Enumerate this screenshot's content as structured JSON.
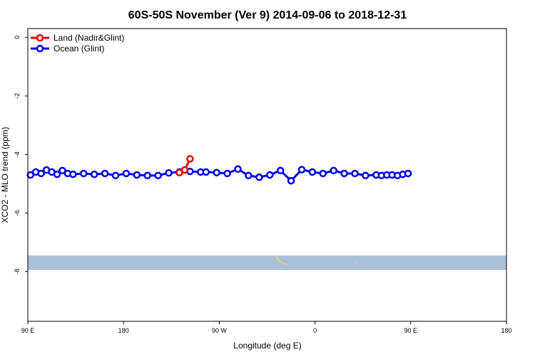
{
  "chart_data": {
    "type": "line",
    "title": "60S-50S November (Ver 9)   2014-09-06 to 2018-12-31",
    "xlabel": "Longitude (deg E)",
    "ylabel": "XCO2 - MLO trend (ppm)",
    "xticks": [
      "90 E",
      "180",
      "90 W",
      "0",
      "90 E",
      "180"
    ],
    "yticks": [
      "0",
      "-2",
      "-4",
      "-6",
      "-8"
    ],
    "ylim": [
      -9.7,
      0.3
    ],
    "grid": false,
    "legend_position": "top-left",
    "series": [
      {
        "name": "Land (Nadir&Glint)",
        "color": "#ee0000",
        "points": [
          [
            -127.5,
            -4.62
          ],
          [
            -122.5,
            -4.53
          ],
          [
            -117.5,
            -4.15
          ]
        ]
      },
      {
        "name": "Ocean (Glint)",
        "color": "#0000ee",
        "points": [
          [
            62.5,
            -4.72
          ],
          [
            72.5,
            -4.7
          ],
          [
            82.5,
            -4.68
          ],
          [
            92.5,
            -4.7
          ],
          [
            102.5,
            -4.65
          ],
          [
            112.5,
            -4.6
          ],
          [
            122.5,
            -4.55
          ],
          [
            132.5,
            -4.68
          ],
          [
            142.5,
            -4.65
          ],
          [
            152.5,
            -4.68
          ],
          [
            162.5,
            -4.65
          ],
          [
            172.5,
            -4.72
          ],
          [
            182.5,
            -4.65
          ],
          [
            192.5,
            -4.7
          ],
          [
            202.5,
            -4.72
          ],
          [
            212.5,
            -4.72
          ],
          [
            222.5,
            -4.63
          ],
          [
            232.5,
            -4.6
          ],
          [
            242.5,
            -4.58
          ],
          [
            252.5,
            -4.6
          ],
          [
            -102.5,
            -4.6
          ],
          [
            -92.5,
            -4.62
          ],
          [
            -82.5,
            -4.65
          ],
          [
            -72.5,
            -4.5
          ],
          [
            -62.5,
            -4.72
          ],
          [
            -52.5,
            -4.78
          ],
          [
            -42.5,
            -4.7
          ],
          [
            -32.5,
            -4.55
          ],
          [
            -22.5,
            -4.9
          ],
          [
            -12.5,
            -4.52
          ],
          [
            -2.5,
            -4.6
          ],
          [
            7.5,
            -4.65
          ],
          [
            17.5,
            -4.55
          ],
          [
            27.5,
            -4.65
          ],
          [
            37.5,
            -4.65
          ],
          [
            47.5,
            -4.72
          ],
          [
            57.5,
            -4.7
          ],
          [
            67.5,
            -4.7
          ],
          [
            77.5,
            -4.72
          ],
          [
            87.5,
            -4.65
          ],
          [
            97.5,
            -4.6
          ],
          [
            107.5,
            -4.53
          ],
          [
            117.5,
            -4.68
          ],
          [
            127.5,
            -4.65
          ]
        ]
      }
    ],
    "map_strip": {
      "latitude_band": "60S-50S",
      "y_range": [
        -7.95,
        -7.45
      ],
      "ocean_color": "#a9bfdc",
      "land_color": "#f2cf6a"
    }
  }
}
